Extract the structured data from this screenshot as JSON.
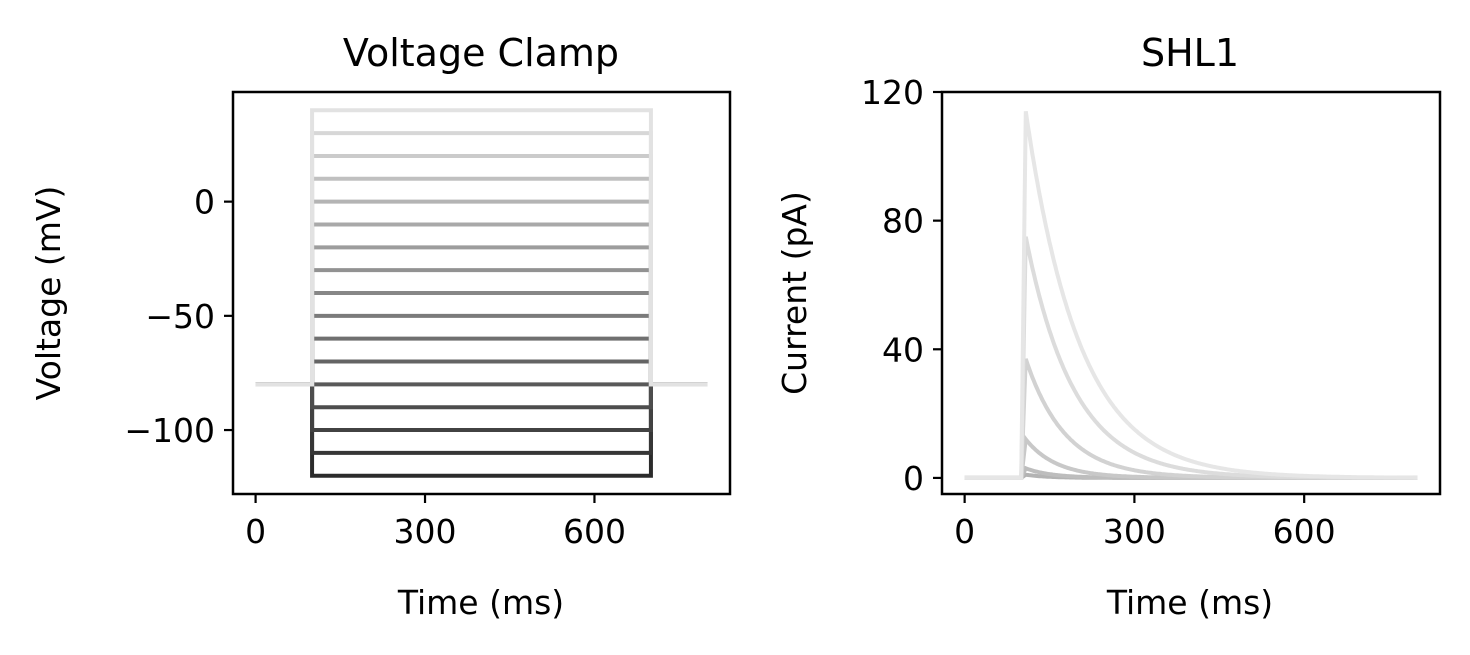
{
  "chart_data": [
    {
      "type": "line",
      "title": "Voltage Clamp",
      "xlabel": "Time (ms)",
      "ylabel": "Voltage (mV)",
      "xlim": [
        -40,
        840
      ],
      "ylim": [
        -128,
        48
      ],
      "xticks": [
        0,
        300,
        600
      ],
      "yticks": [
        0,
        -50,
        -100
      ],
      "ytick_labels": [
        "0",
        "−50",
        "−100"
      ],
      "protocol": {
        "holding_mV": -80,
        "step_start_ms": 100,
        "step_end_ms": 700,
        "end_ms": 800,
        "step_levels_mV": [
          -120,
          -110,
          -100,
          -90,
          -80,
          -70,
          -60,
          -50,
          -40,
          -30,
          -20,
          -10,
          0,
          10,
          20,
          30,
          40
        ]
      },
      "color_range": [
        "#2b2b2b",
        "#e2e2e2"
      ]
    },
    {
      "type": "line",
      "title": "SHL1",
      "xlabel": "Time (ms)",
      "ylabel": "Current (pA)",
      "xlim": [
        -40,
        840
      ],
      "ylim": [
        -5,
        120
      ],
      "xticks": [
        0,
        300,
        600
      ],
      "yticks": [
        0,
        40,
        80,
        120
      ],
      "ytick_labels": [
        "0",
        "40",
        "80",
        "120"
      ],
      "step_start_ms": 100,
      "end_ms": 800,
      "series": [
        {
          "peak_pA": 114,
          "tau_ms": 95,
          "color": "#e6e6e6"
        },
        {
          "peak_pA": 75,
          "tau_ms": 85,
          "color": "#dcdcdc"
        },
        {
          "peak_pA": 37,
          "tau_ms": 70,
          "color": "#d2d2d2"
        },
        {
          "peak_pA": 12,
          "tau_ms": 55,
          "color": "#c8c8c8"
        },
        {
          "peak_pA": 3,
          "tau_ms": 45,
          "color": "#bdbdbd"
        },
        {
          "peak_pA": 1,
          "tau_ms": 40,
          "color": "#b3b3b3"
        }
      ]
    }
  ]
}
